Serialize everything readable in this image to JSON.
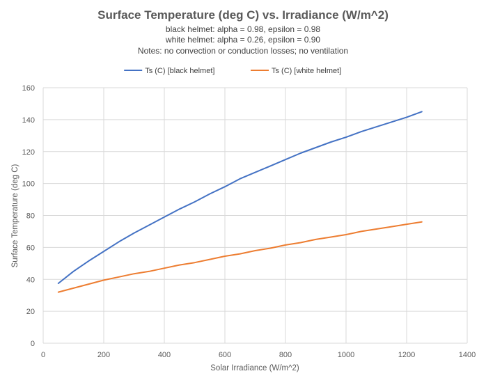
{
  "chart_data": {
    "type": "line",
    "title": "Surface Temperature (deg C) vs. Irradiance (W/m^2)",
    "subtitles": [
      "black helmet: alpha = 0.98, epsilon = 0.98",
      "white helmet: alpha = 0.26, epsilon = 0.90",
      "Notes: no convection or conduction losses; no ventilation"
    ],
    "xlabel": "Solar Irradiance (W/m^2)",
    "ylabel": "Surface Temperature (deg C)",
    "xlim": [
      0,
      1400
    ],
    "ylim": [
      0,
      160
    ],
    "xticks": [
      "0",
      "200",
      "400",
      "600",
      "800",
      "1000",
      "1200",
      "1400"
    ],
    "yticks": [
      "0",
      "20",
      "40",
      "60",
      "80",
      "100",
      "120",
      "140",
      "160"
    ],
    "grid": "vertical and horizontal",
    "legend_position": "top",
    "x": [
      50,
      100,
      150,
      200,
      250,
      300,
      350,
      400,
      450,
      500,
      550,
      600,
      650,
      700,
      750,
      800,
      850,
      900,
      950,
      1000,
      1050,
      1100,
      1150,
      1200,
      1250
    ],
    "series": [
      {
        "name": "Ts (C)  [black helmet]",
        "color": "#4472C4",
        "values": [
          37.5,
          45,
          51.5,
          57.5,
          63.5,
          69,
          74,
          79,
          84,
          88.5,
          93.5,
          98,
          103,
          107,
          111,
          115,
          119,
          122.5,
          126,
          129,
          132.5,
          135.5,
          138.5,
          141.5,
          145
        ]
      },
      {
        "name": "Ts (C)  [white helmet]",
        "color": "#ED7D31",
        "values": [
          32,
          34.5,
          37,
          39.5,
          41.5,
          43.5,
          45,
          47,
          49,
          50.5,
          52.5,
          54.5,
          56,
          58,
          59.5,
          61.5,
          63,
          65,
          66.5,
          68,
          70,
          71.5,
          73,
          74.5,
          76
        ]
      }
    ]
  }
}
